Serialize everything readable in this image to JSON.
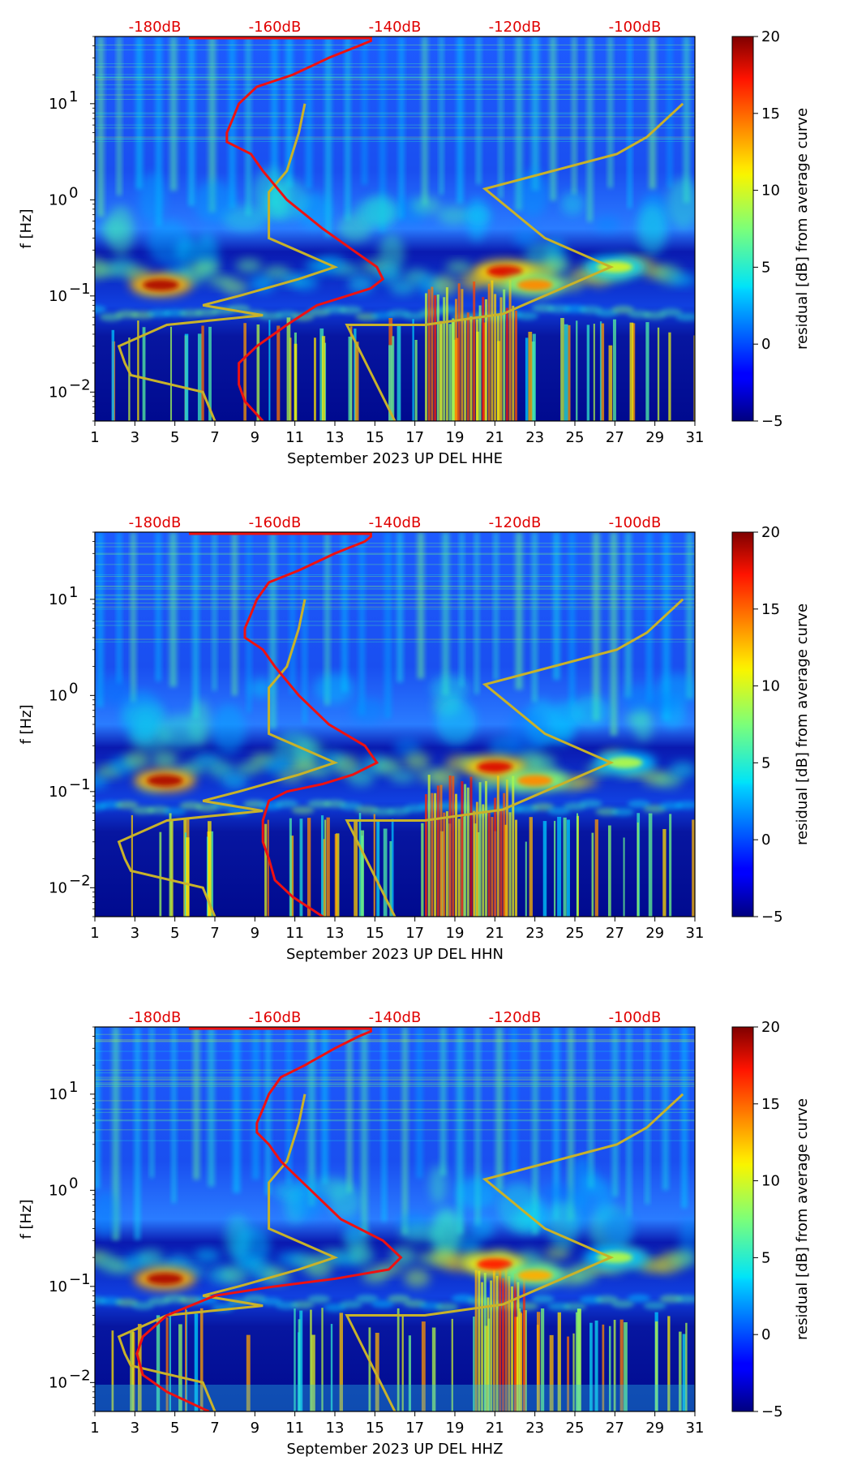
{
  "chart_data": [
    {
      "type": "heatmap",
      "title": "",
      "xlabel": "September 2023 UP DEL  HHE",
      "ylabel": "f [Hz]",
      "xlim": [
        1,
        31
      ],
      "ylim_hz": [
        0.005,
        50
      ],
      "yscale": "log",
      "x_ticks": [
        "1",
        "3",
        "5",
        "7",
        "9",
        "11",
        "13",
        "15",
        "17",
        "19",
        "21",
        "23",
        "25",
        "27",
        "29",
        "31"
      ],
      "y_ticks": [
        {
          "exp": "-2"
        },
        {
          "exp": "-1"
        },
        {
          "exp": "0"
        },
        {
          "exp": "1"
        }
      ],
      "top_ticks": [
        "-180dB",
        "-160dB",
        "-140dB",
        "-120dB",
        "-100dB"
      ],
      "top_db_range": [
        -190,
        -90
      ],
      "colorbar": {
        "label": "residual [dB] from average curve",
        "range": [
          -5,
          20
        ],
        "ticks": [
          "−5",
          "0",
          "5",
          "10",
          "15",
          "20"
        ]
      },
      "red_curve": {
        "name": "average PSD",
        "db": [
          -162,
          -165,
          -166,
          -166,
          -163,
          -158,
          -153,
          -148,
          -144,
          -142,
          -143,
          -147,
          -152,
          -158,
          -162,
          -164,
          -168,
          -168,
          -167,
          -166,
          -163,
          -157,
          -151,
          -146,
          -144,
          -144
        ],
        "freq": [
          0.005,
          0.008,
          0.012,
          0.02,
          0.03,
          0.05,
          0.08,
          0.1,
          0.12,
          0.15,
          0.2,
          0.3,
          0.5,
          1,
          2,
          3,
          4,
          5,
          7,
          10,
          15,
          20,
          30,
          40,
          45,
          50
        ]
      },
      "yellow_curves": [
        {
          "name": "low noise model",
          "db": [
            -170,
            -172,
            -184,
            -185,
            -186,
            -178,
            -162,
            -172,
            -166,
            -156,
            -150,
            -161,
            -161,
            -158,
            -156,
            -155
          ],
          "freq": [
            0.005,
            0.01,
            0.015,
            0.02,
            0.03,
            0.05,
            0.063,
            0.08,
            0.1,
            0.15,
            0.2,
            0.4,
            1.2,
            2,
            5,
            10
          ]
        },
        {
          "name": "high noise model",
          "db": [
            -140,
            -148,
            -135,
            -122,
            -104,
            -115,
            -125,
            -125,
            -103,
            -98,
            -92
          ],
          "freq": [
            0.005,
            0.05,
            0.05,
            0.065,
            0.2,
            0.4,
            1.3,
            1.3,
            3,
            4.5,
            10
          ]
        }
      ],
      "hot_spots": [
        {
          "day": 4.3,
          "freq": 0.13,
          "level": 19
        },
        {
          "day": 21.5,
          "freq": 0.18,
          "level": 18
        },
        {
          "day": 23,
          "freq": 0.13,
          "level": 14
        },
        {
          "day": 27,
          "freq": 0.2,
          "level": 10
        }
      ]
    },
    {
      "type": "heatmap",
      "title": "",
      "xlabel": "September 2023 UP DEL  HHN",
      "ylabel": "f [Hz]",
      "xlim": [
        1,
        31
      ],
      "ylim_hz": [
        0.005,
        50
      ],
      "yscale": "log",
      "x_ticks": [
        "1",
        "3",
        "5",
        "7",
        "9",
        "11",
        "13",
        "15",
        "17",
        "19",
        "21",
        "23",
        "25",
        "27",
        "29",
        "31"
      ],
      "y_ticks": [
        {
          "exp": "-2"
        },
        {
          "exp": "-1"
        },
        {
          "exp": "0"
        },
        {
          "exp": "1"
        }
      ],
      "top_ticks": [
        "-180dB",
        "-160dB",
        "-140dB",
        "-120dB",
        "-100dB"
      ],
      "top_db_range": [
        -190,
        -90
      ],
      "colorbar": {
        "label": "residual [dB] from average curve",
        "range": [
          -5,
          20
        ],
        "ticks": [
          "−5",
          "0",
          "5",
          "10",
          "15",
          "20"
        ]
      },
      "red_curve": {
        "name": "average PSD",
        "db": [
          -152,
          -157,
          -160,
          -161,
          -162,
          -162,
          -161,
          -158,
          -152,
          -147,
          -143,
          -145,
          -151,
          -156,
          -160,
          -162,
          -165,
          -165,
          -164,
          -163,
          -161,
          -156,
          -150,
          -145,
          -144,
          -144
        ],
        "freq": [
          0.005,
          0.008,
          0.012,
          0.02,
          0.03,
          0.05,
          0.08,
          0.1,
          0.12,
          0.15,
          0.2,
          0.3,
          0.5,
          1,
          2,
          3,
          4,
          5,
          7,
          10,
          15,
          20,
          30,
          40,
          45,
          50
        ]
      },
      "yellow_curves": [
        {
          "name": "low noise model",
          "db": [
            -170,
            -172,
            -184,
            -185,
            -186,
            -178,
            -162,
            -172,
            -166,
            -156,
            -150,
            -161,
            -161,
            -158,
            -156,
            -155
          ],
          "freq": [
            0.005,
            0.01,
            0.015,
            0.02,
            0.03,
            0.05,
            0.063,
            0.08,
            0.1,
            0.15,
            0.2,
            0.4,
            1.2,
            2,
            5,
            10
          ]
        },
        {
          "name": "high noise model",
          "db": [
            -140,
            -148,
            -135,
            -122,
            -104,
            -115,
            -125,
            -125,
            -103,
            -98,
            -92
          ],
          "freq": [
            0.005,
            0.05,
            0.05,
            0.065,
            0.2,
            0.4,
            1.3,
            1.3,
            3,
            4.5,
            10
          ]
        }
      ],
      "hot_spots": [
        {
          "day": 4.5,
          "freq": 0.13,
          "level": 19
        },
        {
          "day": 21,
          "freq": 0.18,
          "level": 18
        },
        {
          "day": 23,
          "freq": 0.13,
          "level": 14
        },
        {
          "day": 27.5,
          "freq": 0.2,
          "level": 9
        }
      ]
    },
    {
      "type": "heatmap",
      "title": "",
      "xlabel": "September 2023 UP DEL  HHZ",
      "ylabel": "f [Hz]",
      "xlim": [
        1,
        31
      ],
      "ylim_hz": [
        0.005,
        50
      ],
      "yscale": "log",
      "x_ticks": [
        "1",
        "3",
        "5",
        "7",
        "9",
        "11",
        "13",
        "15",
        "17",
        "19",
        "21",
        "23",
        "25",
        "27",
        "29",
        "31"
      ],
      "y_ticks": [
        {
          "exp": "-2"
        },
        {
          "exp": "-1"
        },
        {
          "exp": "0"
        },
        {
          "exp": "1"
        }
      ],
      "top_ticks": [
        "-180dB",
        "-160dB",
        "-140dB",
        "-120dB",
        "-100dB"
      ],
      "top_db_range": [
        -190,
        -90
      ],
      "colorbar": {
        "label": "residual [dB] from average curve",
        "range": [
          -5,
          20
        ],
        "ticks": [
          "−5",
          "0",
          "5",
          "10",
          "15",
          "20"
        ]
      },
      "red_curve": {
        "name": "average PSD",
        "db": [
          -171,
          -178,
          -182,
          -183,
          -182,
          -178,
          -170,
          -160,
          -150,
          -141,
          -139,
          -142,
          -149,
          -154,
          -159,
          -161,
          -163,
          -163,
          -162,
          -161,
          -159,
          -155,
          -150,
          -146,
          -144,
          -144
        ],
        "freq": [
          0.005,
          0.008,
          0.012,
          0.02,
          0.03,
          0.05,
          0.08,
          0.1,
          0.12,
          0.15,
          0.2,
          0.3,
          0.5,
          1,
          2,
          3,
          4,
          5,
          7,
          10,
          15,
          20,
          30,
          40,
          45,
          50
        ]
      },
      "yellow_curves": [
        {
          "name": "low noise model",
          "db": [
            -170,
            -172,
            -184,
            -185,
            -186,
            -178,
            -162,
            -172,
            -166,
            -156,
            -150,
            -161,
            -161,
            -158,
            -156,
            -155
          ],
          "freq": [
            0.005,
            0.01,
            0.015,
            0.02,
            0.03,
            0.05,
            0.063,
            0.08,
            0.1,
            0.15,
            0.2,
            0.4,
            1.2,
            2,
            5,
            10
          ]
        },
        {
          "name": "high noise model",
          "db": [
            -140,
            -148,
            -135,
            -122,
            -104,
            -115,
            -125,
            -125,
            -103,
            -98,
            -92
          ],
          "freq": [
            0.005,
            0.05,
            0.05,
            0.065,
            0.2,
            0.4,
            1.3,
            1.3,
            3,
            4.5,
            10
          ]
        }
      ],
      "hot_spots": [
        {
          "day": 4.5,
          "freq": 0.12,
          "level": 19
        },
        {
          "day": 21,
          "freq": 0.17,
          "level": 17
        },
        {
          "day": 23,
          "freq": 0.13,
          "level": 13
        },
        {
          "day": 27,
          "freq": 0.2,
          "level": 9
        }
      ]
    }
  ]
}
